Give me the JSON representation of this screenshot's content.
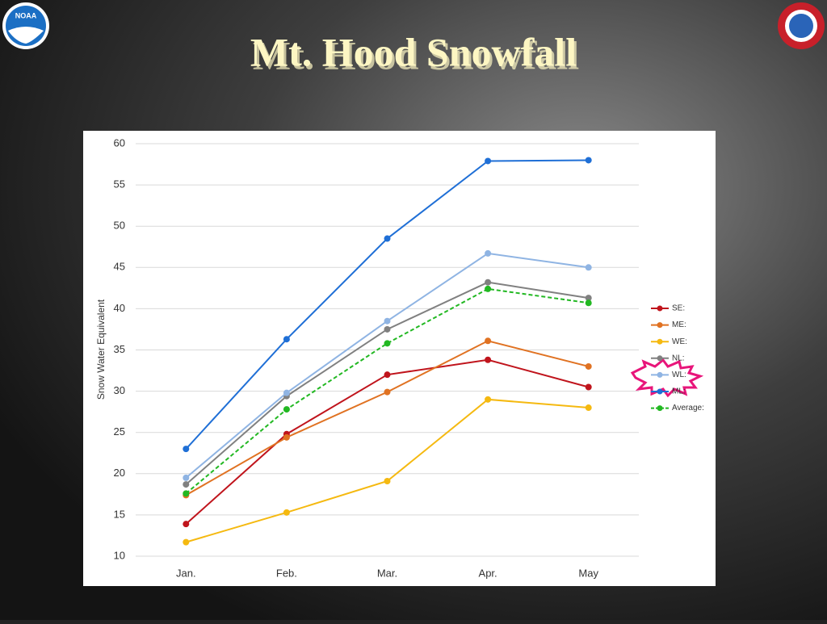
{
  "slide": {
    "title": "Mt. Hood Snowfall",
    "logo_left": "NOAA"
  },
  "chart_data": {
    "type": "line",
    "y_label": "Snow Water Equivalent",
    "categories": [
      "Jan.",
      "Feb.",
      "Mar.",
      "Apr.",
      "May"
    ],
    "ylim": [
      10,
      60
    ],
    "yticks": [
      10,
      15,
      20,
      25,
      30,
      35,
      40,
      45,
      50,
      55,
      60
    ],
    "grid": true,
    "legend": "right",
    "series": [
      {
        "name": "SE:",
        "color": "#c0141c",
        "values": [
          13.9,
          24.8,
          32.0,
          33.8,
          30.5
        ]
      },
      {
        "name": "ME:",
        "color": "#e07222",
        "values": [
          17.4,
          24.4,
          29.9,
          36.1,
          33.0
        ]
      },
      {
        "name": "WE:",
        "color": "#f5b910",
        "values": [
          11.7,
          15.3,
          19.1,
          29.0,
          28.0
        ]
      },
      {
        "name": "NL:",
        "color": "#808080",
        "values": [
          18.7,
          29.4,
          37.5,
          43.2,
          41.3
        ]
      },
      {
        "name": "WL:",
        "color": "#8fb4e3",
        "values": [
          19.5,
          29.8,
          38.5,
          46.7,
          45.0
        ]
      },
      {
        "name": "ML:",
        "color": "#1f6fd6",
        "values": [
          23.0,
          36.3,
          48.5,
          57.9,
          58.0
        ]
      },
      {
        "name": "Average:",
        "color": "#22b822",
        "dashed": true,
        "values": [
          17.6,
          27.8,
          35.8,
          42.4,
          40.7
        ]
      }
    ]
  }
}
